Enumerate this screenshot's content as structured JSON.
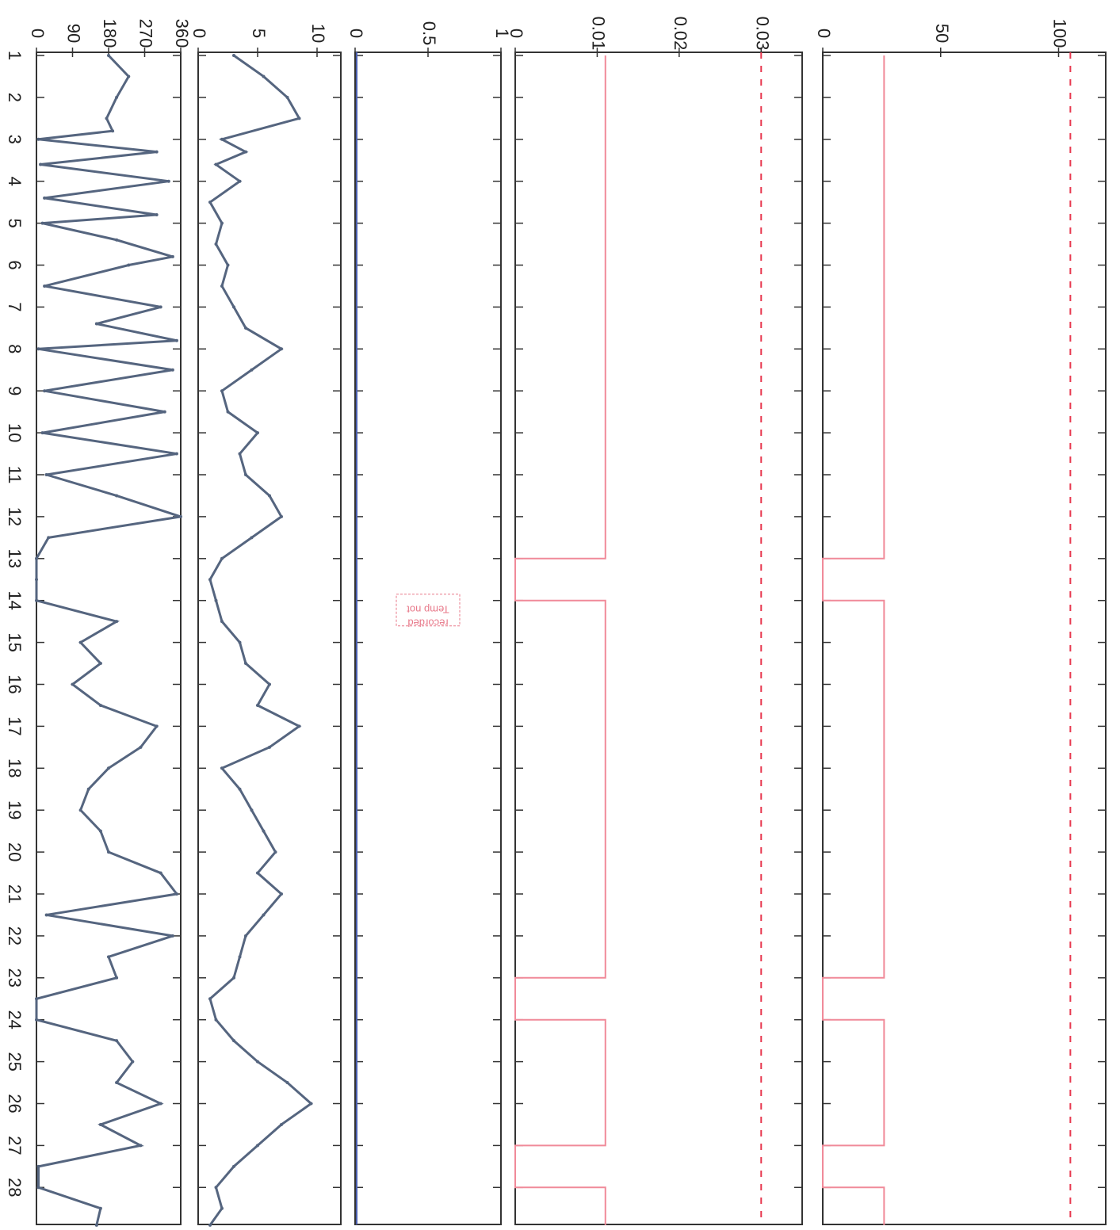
{
  "chart_data": {
    "type": "line",
    "orientation": "rotated 90 degrees clockwise (day axis runs top to bottom, values increase to the left)",
    "x_ticks": [
      "1",
      "2",
      "3",
      "4",
      "5",
      "6",
      "7",
      "8",
      "9",
      "10",
      "11",
      "12",
      "13",
      "14",
      "15",
      "16",
      "17",
      "18",
      "19",
      "20",
      "21",
      "22",
      "23",
      "24",
      "25",
      "26",
      "27",
      "28"
    ],
    "panels": [
      {
        "id": "panel-1",
        "ylim": [
          0,
          120
        ],
        "y_ticks": [
          "0",
          "50",
          "100"
        ],
        "line_color": "#f08a99",
        "threshold": {
          "value": 105,
          "color": "#e8384f",
          "style": "dashed"
        },
        "series": [
          {
            "segment_days": [
              1.0,
              13.0
            ],
            "level": 26
          },
          {
            "segment_days": [
              13.0,
              14.0
            ],
            "level": 0
          },
          {
            "segment_days": [
              14.0,
              23.0
            ],
            "level": 26
          },
          {
            "segment_days": [
              23.0,
              24.0
            ],
            "level": 0
          },
          {
            "segment_days": [
              24.0,
              27.0
            ],
            "level": 26
          },
          {
            "segment_days": [
              27.0,
              28.0
            ],
            "level": 0
          },
          {
            "segment_days": [
              28.0,
              28.9
            ],
            "level": 26
          }
        ]
      },
      {
        "id": "panel-2",
        "ylim": [
          0,
          0.035
        ],
        "y_ticks": [
          "0",
          "0.01",
          "0.02",
          "0.03"
        ],
        "line_color": "#f08a99",
        "threshold": {
          "value": 0.03,
          "color": "#e8384f",
          "style": "dashed"
        },
        "series": [
          {
            "segment_days": [
              1.0,
              13.0
            ],
            "level": 0.011
          },
          {
            "segment_days": [
              13.0,
              14.0
            ],
            "level": 0
          },
          {
            "segment_days": [
              14.0,
              23.0
            ],
            "level": 0.011
          },
          {
            "segment_days": [
              23.0,
              24.0
            ],
            "level": 0
          },
          {
            "segment_days": [
              24.0,
              27.0
            ],
            "level": 0.011
          },
          {
            "segment_days": [
              27.0,
              28.0
            ],
            "level": 0
          },
          {
            "segment_days": [
              28.0,
              28.9
            ],
            "level": 0.011
          }
        ]
      },
      {
        "id": "panel-3",
        "ylim": [
          0,
          1
        ],
        "y_ticks": [
          "0",
          "0.5",
          "1"
        ],
        "line_color": "#4a5fb0",
        "values": {
          "constant": 0
        },
        "annotation": {
          "line1": "Temp not",
          "line2": "recorded",
          "day": 14.0,
          "value": 0.5
        }
      },
      {
        "id": "panel-4",
        "ylim": [
          0,
          12
        ],
        "y_ticks": [
          "0",
          "5",
          "10"
        ],
        "line_color": "#55657f",
        "day": [
          1.0,
          1.5,
          2.0,
          2.5,
          3.0,
          3.3,
          3.6,
          4.0,
          4.5,
          5.0,
          5.5,
          6.0,
          6.5,
          7.0,
          7.5,
          8.0,
          8.5,
          9.0,
          9.5,
          10.0,
          10.5,
          11.0,
          11.5,
          12.0,
          12.5,
          13.0,
          13.5,
          14.0,
          14.5,
          15.0,
          15.5,
          16.0,
          16.5,
          17.0,
          17.5,
          18.0,
          18.5,
          19.0,
          19.5,
          20.0,
          20.5,
          21.0,
          21.5,
          22.0,
          22.5,
          23.0,
          23.5,
          24.0,
          24.5,
          25.0,
          25.5,
          26.0,
          26.5,
          27.0,
          27.5,
          28.0,
          28.5,
          28.9
        ],
        "values": [
          3.0,
          5.5,
          7.5,
          8.5,
          2.0,
          4.0,
          1.5,
          3.5,
          1.0,
          2.0,
          1.5,
          2.5,
          2.0,
          3.0,
          4.0,
          7.0,
          4.5,
          2.0,
          2.5,
          5.0,
          3.5,
          4.0,
          6.0,
          7.0,
          4.5,
          2.0,
          1.0,
          1.5,
          2.0,
          3.5,
          4.0,
          6.0,
          5.0,
          8.5,
          6.0,
          2.0,
          3.5,
          4.5,
          5.5,
          6.5,
          5.0,
          7.0,
          5.5,
          4.0,
          3.5,
          3.0,
          1.0,
          1.5,
          3.0,
          5.0,
          7.5,
          9.5,
          7.0,
          5.0,
          3.0,
          1.5,
          2.0,
          1.0
        ]
      },
      {
        "id": "panel-5",
        "ylim": [
          0,
          360
        ],
        "y_ticks": [
          "0",
          "90",
          "180",
          "270",
          "360"
        ],
        "line_color": "#55657f",
        "day": [
          1.0,
          1.5,
          2.0,
          2.5,
          2.8,
          3.0,
          3.3,
          3.6,
          4.0,
          4.4,
          4.8,
          5.0,
          5.4,
          5.8,
          6.0,
          6.5,
          7.0,
          7.4,
          7.8,
          8.0,
          8.5,
          9.0,
          9.5,
          10.0,
          10.5,
          11.0,
          11.5,
          12.0,
          12.5,
          13.0,
          13.5,
          14.0,
          14.5,
          15.0,
          15.5,
          16.0,
          16.5,
          17.0,
          17.5,
          18.0,
          18.5,
          19.0,
          19.5,
          20.0,
          20.5,
          21.0,
          21.5,
          22.0,
          22.5,
          23.0,
          23.5,
          24.0,
          24.5,
          25.0,
          25.5,
          26.0,
          26.5,
          27.0,
          27.5,
          28.0,
          28.5,
          28.9
        ],
        "values": [
          180,
          230,
          200,
          175,
          190,
          5,
          300,
          10,
          330,
          20,
          300,
          15,
          200,
          340,
          230,
          20,
          310,
          150,
          350,
          5,
          340,
          20,
          320,
          15,
          350,
          25,
          200,
          360,
          30,
          0,
          0,
          0,
          200,
          110,
          160,
          90,
          160,
          300,
          260,
          180,
          130,
          110,
          160,
          180,
          310,
          350,
          25,
          340,
          180,
          200,
          0,
          0,
          200,
          240,
          200,
          310,
          160,
          260,
          5,
          5,
          160,
          150
        ]
      }
    ]
  }
}
